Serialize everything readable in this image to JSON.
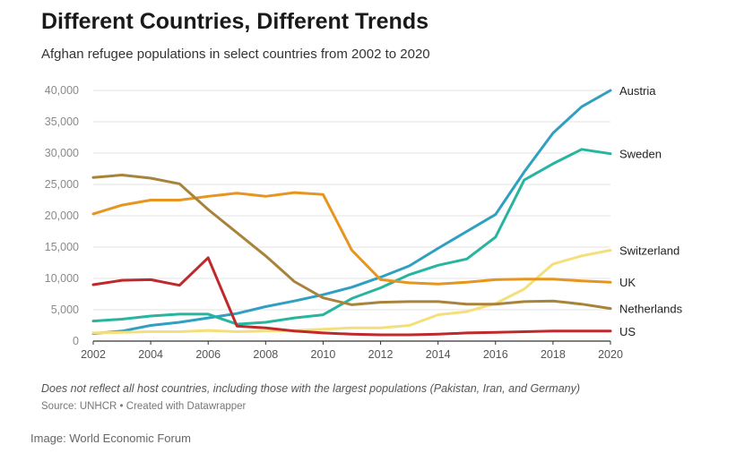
{
  "title": "Different Countries, Different Trends",
  "subtitle": "Afghan refugee populations in select countries from 2002 to 2020",
  "note": "Does not reflect all host countries, including those with the largest populations (Pakistan, Iran, and Germany)",
  "source": "Source: UNHCR • Created with Datawrapper",
  "credit": "Image: World Economic Forum",
  "chart_data": {
    "type": "line",
    "title": "Different Countries, Different Trends",
    "subtitle": "Afghan refugee populations in select countries from 2002 to 2020",
    "xlabel": "",
    "ylabel": "",
    "x": [
      2002,
      2003,
      2004,
      2005,
      2006,
      2007,
      2008,
      2009,
      2010,
      2011,
      2012,
      2013,
      2014,
      2015,
      2016,
      2017,
      2018,
      2019,
      2020
    ],
    "x_ticks": [
      "2002",
      "2004",
      "2006",
      "2008",
      "2010",
      "2012",
      "2014",
      "2016",
      "2018",
      "2020"
    ],
    "y_ticks": [
      "0",
      "5,000",
      "10,000",
      "15,000",
      "20,000",
      "25,000",
      "30,000",
      "35,000",
      "40,000"
    ],
    "ylim": [
      0,
      40000
    ],
    "grid": true,
    "legend": "direct labels at line ends",
    "series": [
      {
        "name": "Austria",
        "color": "#2f9fc2",
        "values": [
          1200,
          1600,
          2500,
          3000,
          3700,
          4400,
          5500,
          6400,
          7400,
          8600,
          10200,
          12000,
          14800,
          17500,
          20200,
          27000,
          33200,
          37400,
          40000
        ]
      },
      {
        "name": "Sweden",
        "color": "#27b5a0",
        "values": [
          3200,
          3500,
          4000,
          4300,
          4300,
          2700,
          3000,
          3700,
          4200,
          6800,
          8500,
          10600,
          12100,
          13100,
          16600,
          25700,
          28300,
          30600,
          29900
        ]
      },
      {
        "name": "Switzerland",
        "color": "#f4df7c",
        "values": [
          1300,
          1400,
          1500,
          1500,
          1700,
          1500,
          1600,
          1700,
          1900,
          2100,
          2100,
          2500,
          4200,
          4700,
          6000,
          8300,
          12300,
          13600,
          14500
        ]
      },
      {
        "name": "UK",
        "color": "#e8951f",
        "values": [
          20300,
          21700,
          22500,
          22500,
          23100,
          23600,
          23100,
          23700,
          23400,
          14500,
          9800,
          9300,
          9100,
          9400,
          9800,
          9900,
          9900,
          9600,
          9400
        ]
      },
      {
        "name": "Netherlands",
        "color": "#a8833b",
        "values": [
          26100,
          26500,
          26000,
          25100,
          21000,
          17300,
          13600,
          9500,
          6900,
          5800,
          6200,
          6300,
          6300,
          5900,
          5900,
          6300,
          6400,
          5900,
          5200
        ]
      },
      {
        "name": "US",
        "color": "#c0292b",
        "values": [
          9000,
          9700,
          9800,
          8900,
          13300,
          2400,
          2100,
          1600,
          1300,
          1100,
          1000,
          1000,
          1100,
          1300,
          1400,
          1500,
          1600,
          1600,
          1600
        ]
      }
    ]
  }
}
